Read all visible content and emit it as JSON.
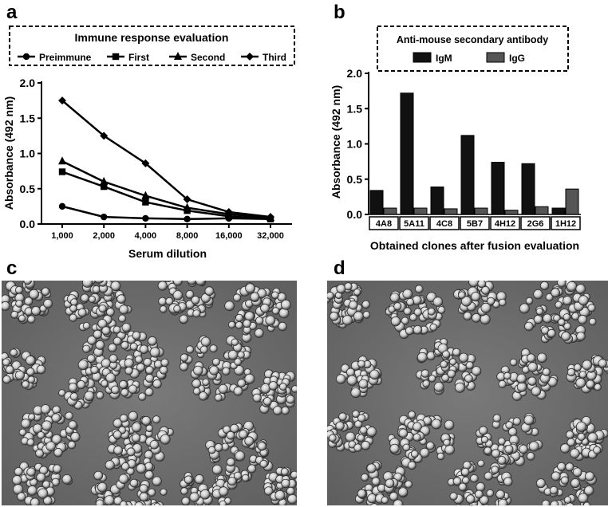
{
  "panels": {
    "a": "a",
    "b": "b",
    "c": "c",
    "d": "d"
  },
  "chart_data": [
    {
      "type": "line",
      "title": "Immune response evaluation",
      "xlabel": "Serum dilution",
      "ylabel": "Absorbance (492 nm)",
      "categories": [
        "1,000",
        "2,000",
        "4,000",
        "8,000",
        "16,000",
        "32,000"
      ],
      "ylim": [
        0,
        2.0
      ],
      "yticks": [
        "0.0",
        "0.5",
        "1.0",
        "1.5",
        "2.0"
      ],
      "legend_position": "top",
      "series": [
        {
          "name": "Preimmune",
          "marker": "circle",
          "values": [
            0.25,
            0.1,
            0.08,
            0.07,
            0.08,
            0.07
          ]
        },
        {
          "name": "First",
          "marker": "square",
          "values": [
            0.74,
            0.53,
            0.31,
            0.19,
            0.11,
            0.07
          ]
        },
        {
          "name": "Second",
          "marker": "triangle",
          "values": [
            0.89,
            0.6,
            0.4,
            0.23,
            0.14,
            0.09
          ]
        },
        {
          "name": "Third",
          "marker": "diamond",
          "values": [
            1.75,
            1.25,
            0.86,
            0.35,
            0.17,
            0.1
          ]
        }
      ]
    },
    {
      "type": "bar",
      "title": "Anti-mouse secondary antibody",
      "xlabel": "Obtained clones after fusion evaluation",
      "ylabel": "Absorbance (492 nm)",
      "categories": [
        "4A8",
        "5A11",
        "4C8",
        "5B7",
        "4H12",
        "2G6",
        "1H12"
      ],
      "ylim": [
        0,
        2.0
      ],
      "yticks": [
        "0.0",
        "0.5",
        "1.0",
        "1.5",
        "2.0"
      ],
      "legend_position": "top",
      "series": [
        {
          "name": "IgM",
          "color": "#111111",
          "values": [
            0.34,
            1.72,
            0.39,
            1.12,
            0.74,
            0.72,
            0.09
          ]
        },
        {
          "name": "IgG",
          "color": "#555555",
          "values": [
            0.09,
            0.09,
            0.08,
            0.09,
            0.06,
            0.11,
            0.36
          ]
        }
      ]
    }
  ]
}
